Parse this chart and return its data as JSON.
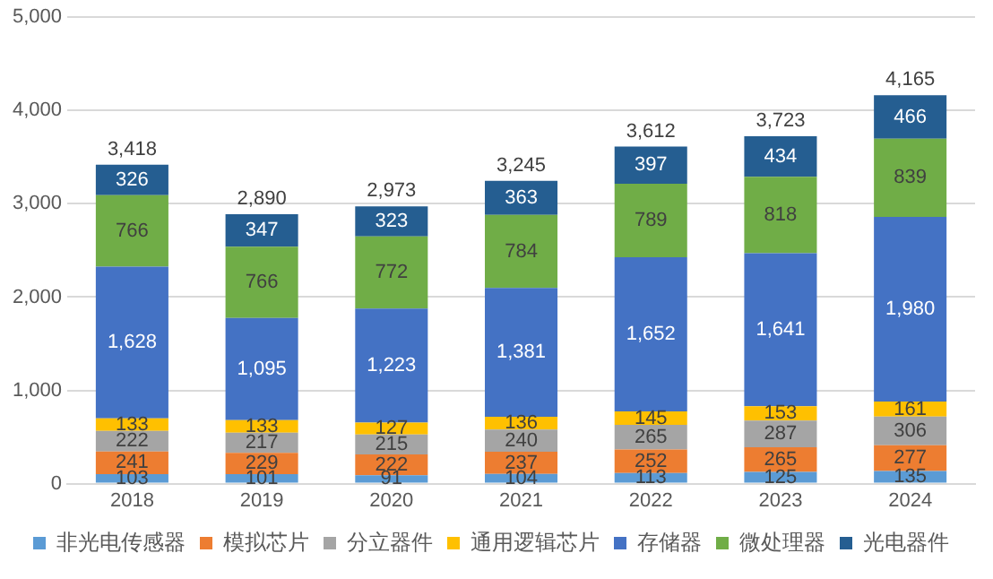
{
  "chart_data": {
    "type": "bar",
    "stacked": true,
    "categories": [
      "2018",
      "2019",
      "2020",
      "2021",
      "2022",
      "2023",
      "2024"
    ],
    "series": [
      {
        "name": "非光电传感器",
        "color": "#5b9bd5",
        "values": [
          103,
          101,
          91,
          104,
          113,
          125,
          135
        ]
      },
      {
        "name": "模拟芯片",
        "color": "#ed7d31",
        "values": [
          241,
          229,
          222,
          237,
          252,
          265,
          277
        ]
      },
      {
        "name": "分立器件",
        "color": "#a5a5a5",
        "values": [
          222,
          217,
          215,
          240,
          265,
          287,
          306
        ]
      },
      {
        "name": "通用逻辑芯片",
        "color": "#ffc000",
        "values": [
          133,
          133,
          127,
          136,
          145,
          153,
          161
        ]
      },
      {
        "name": "存储器",
        "color": "#4472c4",
        "values": [
          1628,
          1095,
          1223,
          1381,
          1652,
          1641,
          1980
        ],
        "value_labels": [
          "1,628",
          "1,095",
          "1,223",
          "1,381",
          "1,652",
          "1,641",
          "1,980"
        ]
      },
      {
        "name": "微处理器",
        "color": "#70ad47",
        "values": [
          766,
          766,
          772,
          784,
          789,
          818,
          839
        ]
      },
      {
        "name": "光电器件",
        "color": "#255e91",
        "values": [
          326,
          347,
          323,
          363,
          397,
          434,
          466
        ]
      }
    ],
    "totals": [
      "3,418",
      "2,890",
      "2,973",
      "3,245",
      "3,612",
      "3,723",
      "4,165"
    ],
    "ylim": [
      0,
      5000
    ],
    "yticks": [
      0,
      {
        "value": 1000,
        "label": "1,000"
      },
      {
        "value": 2000,
        "label": "2,000"
      },
      {
        "value": 3000,
        "label": "3,000"
      },
      {
        "value": 4000,
        "label": "4,000"
      },
      {
        "value": 5000,
        "label": "5,000"
      }
    ],
    "grid": "y",
    "legend": "bottom",
    "data_labels": true
  }
}
